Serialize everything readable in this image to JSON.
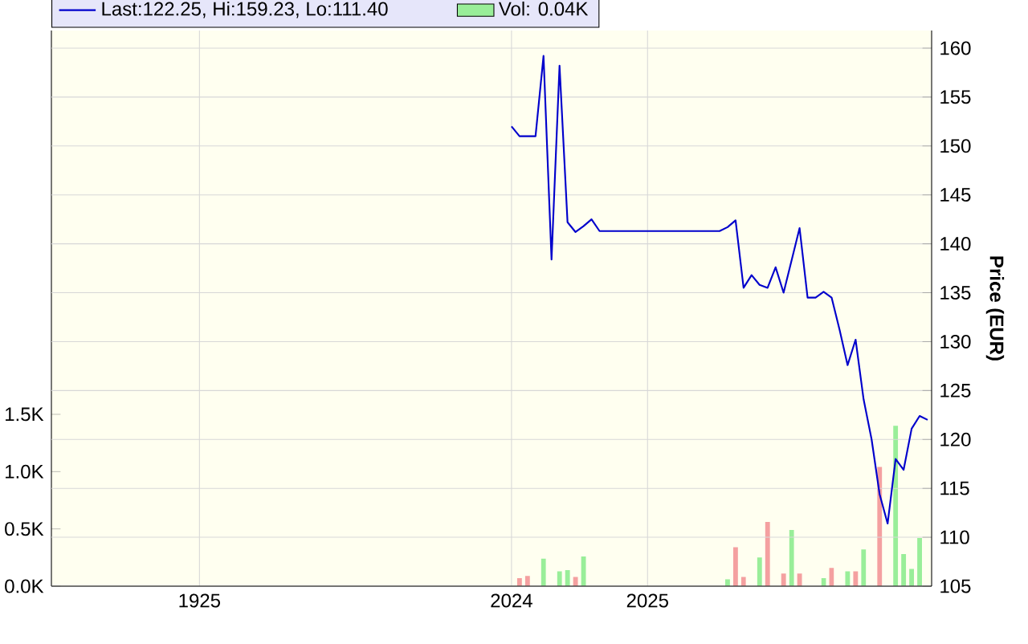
{
  "chart_data": {
    "type": "line",
    "categories": [
      null,
      null,
      null,
      null,
      null,
      null,
      null,
      null,
      null,
      null,
      null,
      null,
      null,
      null,
      null,
      null,
      null,
      null,
      "1925",
      null,
      null,
      null,
      null,
      null,
      null,
      null,
      null,
      null,
      null,
      null,
      null,
      null,
      null,
      null,
      null,
      null,
      null,
      null,
      null,
      null,
      null,
      null,
      null,
      null,
      null,
      null,
      null,
      null,
      null,
      null,
      null,
      null,
      null,
      null,
      null,
      null,
      null,
      "2024",
      null,
      null,
      null,
      null,
      null,
      null,
      null,
      null,
      null,
      null,
      null,
      null,
      null,
      null,
      null,
      null,
      "2025",
      null,
      null,
      null,
      null,
      null,
      null,
      null,
      null,
      null,
      null,
      null,
      null,
      null,
      null,
      null,
      null,
      null,
      null,
      null,
      null,
      null,
      null,
      null,
      null,
      null,
      null,
      null,
      null,
      null,
      null,
      null,
      null,
      null,
      null,
      null
    ],
    "series": [
      {
        "name": "Vol: 0.04K",
        "type": "bar",
        "axis": "y2",
        "color": "#99ee99",
        "values": [
          null,
          null,
          null,
          null,
          null,
          null,
          null,
          null,
          null,
          null,
          null,
          null,
          null,
          null,
          null,
          null,
          null,
          null,
          null,
          null,
          null,
          null,
          null,
          null,
          null,
          null,
          null,
          null,
          null,
          null,
          null,
          null,
          null,
          null,
          null,
          null,
          null,
          null,
          null,
          null,
          null,
          null,
          null,
          null,
          null,
          null,
          null,
          null,
          null,
          null,
          null,
          null,
          null,
          null,
          null,
          null,
          null,
          null,
          0.07,
          0.09,
          null,
          0.24,
          null,
          0.13,
          0.14,
          0.08,
          0.26,
          null,
          null,
          null,
          null,
          null,
          null,
          null,
          null,
          null,
          null,
          null,
          null,
          null,
          null,
          null,
          null,
          null,
          0.06,
          0.34,
          0.08,
          null,
          0.25,
          0.56,
          null,
          0.11,
          0.49,
          0.11,
          null,
          null,
          0.07,
          0.16,
          null,
          0.13,
          0.13,
          0.32,
          null,
          1.04,
          null,
          1.4,
          0.28,
          0.15,
          0.42,
          null
        ],
        "colors": [
          null,
          null,
          null,
          null,
          null,
          null,
          null,
          null,
          null,
          null,
          null,
          null,
          null,
          null,
          null,
          null,
          null,
          null,
          null,
          null,
          null,
          null,
          null,
          null,
          null,
          null,
          null,
          null,
          null,
          null,
          null,
          null,
          null,
          null,
          null,
          null,
          null,
          null,
          null,
          null,
          null,
          null,
          null,
          null,
          null,
          null,
          null,
          null,
          null,
          null,
          null,
          null,
          null,
          null,
          null,
          null,
          null,
          null,
          "#f4a0a0",
          "#f4a0a0",
          null,
          "#99ee99",
          null,
          "#99ee99",
          "#99ee99",
          "#f4a0a0",
          "#99ee99",
          null,
          null,
          null,
          null,
          null,
          null,
          null,
          null,
          null,
          null,
          null,
          null,
          null,
          null,
          null,
          null,
          null,
          "#99ee99",
          "#f4a0a0",
          "#f4a0a0",
          null,
          "#99ee99",
          "#f4a0a0",
          null,
          "#f4a0a0",
          "#99ee99",
          "#f4a0a0",
          null,
          null,
          "#99ee99",
          "#f4a0a0",
          null,
          "#99ee99",
          "#f4a0a0",
          "#99ee99",
          null,
          "#f4a0a0",
          null,
          "#99ee99",
          "#99ee99",
          "#99ee99",
          "#99ee99",
          null
        ]
      },
      {
        "name": "Last:122.25, Hi:159.23, Lo:111.40",
        "color": "#0000cc",
        "values": [
          null,
          null,
          null,
          null,
          null,
          null,
          null,
          null,
          null,
          null,
          null,
          null,
          null,
          null,
          null,
          null,
          null,
          null,
          null,
          null,
          null,
          null,
          null,
          null,
          null,
          null,
          null,
          null,
          null,
          null,
          null,
          null,
          null,
          null,
          null,
          null,
          null,
          null,
          null,
          null,
          null,
          null,
          null,
          null,
          null,
          null,
          null,
          null,
          null,
          null,
          null,
          null,
          null,
          null,
          null,
          null,
          null,
          152,
          151,
          151,
          151,
          159.2,
          138.4,
          158.2,
          142.2,
          141.2,
          141.8,
          142.5,
          141.3,
          141.3,
          141.3,
          141.3,
          141.3,
          141.3,
          141.3,
          141.3,
          141.3,
          141.3,
          141.3,
          141.3,
          141.3,
          141.3,
          141.3,
          141.3,
          141.7,
          142.4,
          135.5,
          136.8,
          135.8,
          135.5,
          137.6,
          135,
          138.3,
          141.6,
          134.5,
          134.5,
          135.1,
          134.5,
          131.2,
          127.6,
          130.2,
          124.1,
          120,
          114.4,
          111.4,
          118,
          116.9,
          121.1,
          122.4,
          122
        ]
      }
    ],
    "ylabel": "Price (EUR)",
    "ylim": [
      105,
      161.8
    ],
    "yticks": [
      105,
      110,
      115,
      120,
      125,
      130,
      135,
      140,
      145,
      150,
      155,
      160
    ],
    "y2lim": [
      0,
      4.85
    ],
    "y2ticks": [
      {
        "value": 0,
        "label": "0.0K"
      },
      {
        "value": 0.5,
        "label": "0.5K"
      },
      {
        "value": 1.0,
        "label": "1.0K"
      },
      {
        "value": 1.5,
        "label": "1.5K"
      }
    ],
    "grid": true,
    "legend": "top",
    "marker": "none",
    "line_style": "solid"
  }
}
